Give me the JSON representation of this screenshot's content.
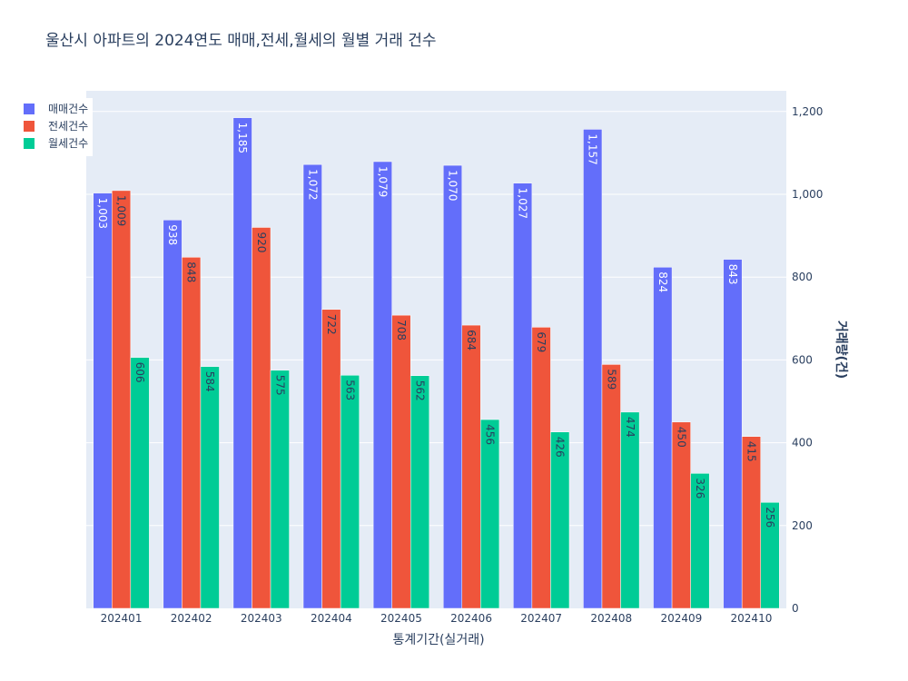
{
  "chart_data": {
    "type": "bar",
    "title": "울산시 아파트의 2024연도 매매,전세,월세의 월별 거래 건수",
    "xlabel": "통계기간(실거래)",
    "ylabel": "거래량(건)",
    "categories": [
      "202401",
      "202402",
      "202403",
      "202404",
      "202405",
      "202406",
      "202407",
      "202408",
      "202409",
      "202410"
    ],
    "series": [
      {
        "name": "매매건수",
        "color": "#636efa",
        "label_color": "#ffffff",
        "values": [
          1003,
          938,
          1185,
          1072,
          1079,
          1070,
          1027,
          1157,
          824,
          843
        ]
      },
      {
        "name": "전세건수",
        "color": "#ef553b",
        "label_color": "#2a3f5f",
        "values": [
          1009,
          848,
          920,
          722,
          708,
          684,
          679,
          589,
          450,
          415
        ]
      },
      {
        "name": "월세건수",
        "color": "#00cc96",
        "label_color": "#2a3f5f",
        "values": [
          606,
          584,
          575,
          563,
          562,
          456,
          426,
          474,
          326,
          256
        ]
      }
    ],
    "ylim": [
      0,
      1250
    ],
    "yticks": [
      0,
      200,
      400,
      600,
      800,
      1000,
      1200
    ],
    "y_axis_side": "right",
    "grid": true,
    "legend": "top-left",
    "plot_bg": "#e5ecf6"
  }
}
